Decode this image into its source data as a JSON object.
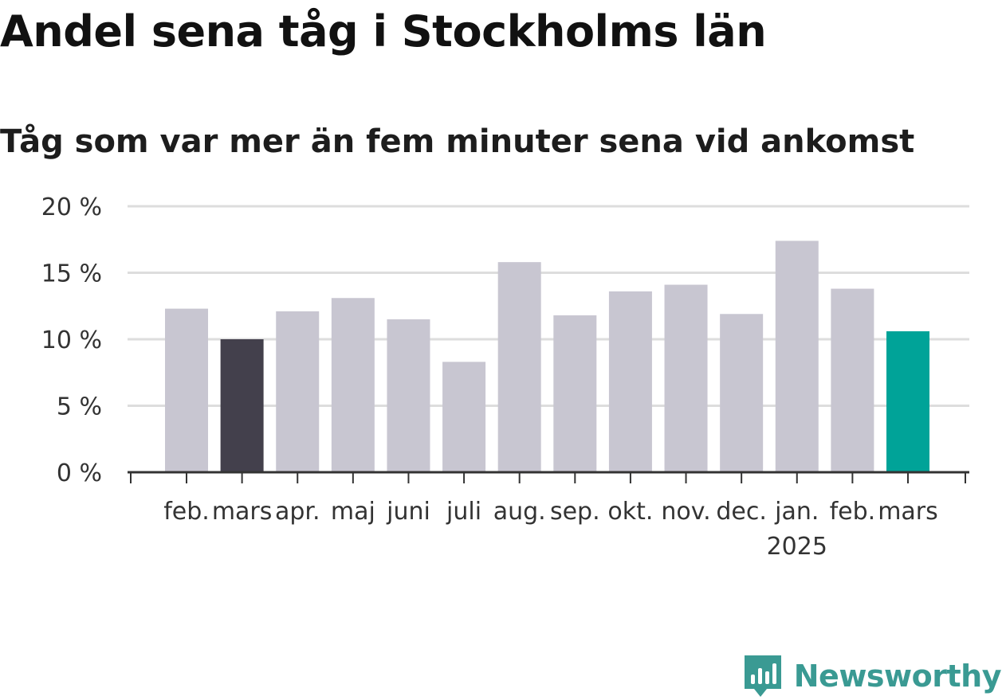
{
  "header": {
    "title": "Andel sena tåg i Stockholms län",
    "subtitle": "Tåg som var mer än fem minuter sena vid ankomst"
  },
  "brand": {
    "name": "Newsworthy",
    "color": "#3a9a93"
  },
  "colors": {
    "default": "#c8c6d1",
    "previous_year_highlight": "#43404c",
    "current_highlight": "#00a398",
    "gridline": "#dddddd",
    "axis": "#333333"
  },
  "chart_data": {
    "type": "bar",
    "title": "Andel sena tåg i Stockholms län",
    "subtitle": "Tåg som var mer än fem minuter sena vid ankomst",
    "xlabel": "",
    "ylabel": "",
    "ylim": [
      0,
      20
    ],
    "y_ticks": [
      "0 %",
      "5 %",
      "10 %",
      "15 %",
      "20 %"
    ],
    "y_tick_values": [
      0,
      5,
      10,
      15,
      20
    ],
    "grid": true,
    "categories": [
      "feb.",
      "mars",
      "apr.",
      "maj",
      "juni",
      "juli",
      "aug.",
      "sep.",
      "okt.",
      "nov.",
      "dec.",
      "jan.",
      "feb.",
      "mars"
    ],
    "year_labels": [
      {
        "category_index": 11,
        "text": "2025"
      }
    ],
    "values": [
      12.3,
      10.0,
      12.1,
      13.1,
      11.5,
      8.3,
      15.8,
      11.8,
      13.6,
      14.1,
      11.9,
      17.4,
      13.8,
      10.6
    ],
    "highlight": [
      null,
      "previous_year_highlight",
      null,
      null,
      null,
      null,
      null,
      null,
      null,
      null,
      null,
      null,
      null,
      "current_highlight"
    ]
  }
}
